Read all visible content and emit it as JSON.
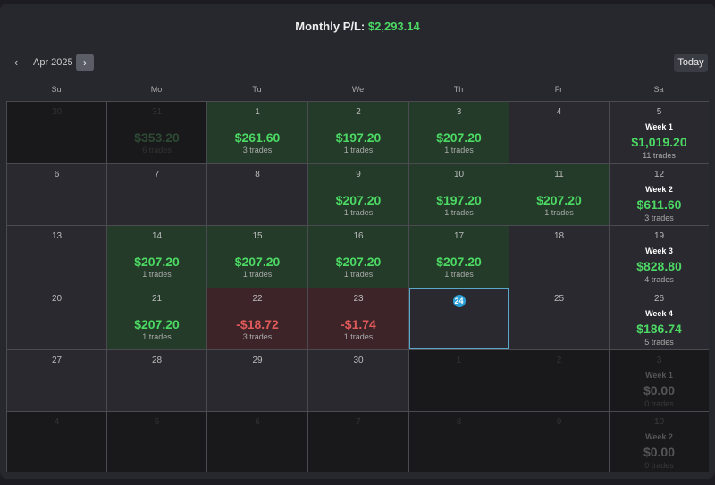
{
  "header": {
    "title_label": "Monthly P/L:",
    "title_value": "$2,293.14"
  },
  "nav": {
    "prev_icon": "‹",
    "next_icon": "›",
    "month_label": "Apr 2025",
    "today_label": "Today"
  },
  "weekdays": [
    "Su",
    "Mo",
    "Tu",
    "We",
    "Th",
    "Fr",
    "Sa"
  ],
  "colors": {
    "positive": "#4cd964",
    "negative": "#e05a5a",
    "positive_bg": "#233b28",
    "negative_bg": "#3d2429",
    "today_accent": "#2a9fd8"
  },
  "weeks": [
    {
      "days": [
        {
          "day": "30",
          "type": "other",
          "amount": "",
          "trades": ""
        },
        {
          "day": "31",
          "type": "other",
          "amount": "$353.20",
          "trades": "6 trades"
        },
        {
          "day": "1",
          "type": "pos",
          "amount": "$261.60",
          "trades": "3 trades"
        },
        {
          "day": "2",
          "type": "pos",
          "amount": "$197.20",
          "trades": "1 trades"
        },
        {
          "day": "3",
          "type": "pos",
          "amount": "$207.20",
          "trades": "1 trades"
        },
        {
          "day": "4",
          "type": "empty",
          "amount": "",
          "trades": ""
        }
      ],
      "summary": {
        "day": "5",
        "type": "current",
        "week": "Week 1",
        "amount": "$1,019.20",
        "trades": "11 trades"
      }
    },
    {
      "days": [
        {
          "day": "6",
          "type": "empty",
          "amount": "",
          "trades": ""
        },
        {
          "day": "7",
          "type": "empty",
          "amount": "",
          "trades": ""
        },
        {
          "day": "8",
          "type": "empty",
          "amount": "",
          "trades": ""
        },
        {
          "day": "9",
          "type": "pos",
          "amount": "$207.20",
          "trades": "1 trades"
        },
        {
          "day": "10",
          "type": "pos",
          "amount": "$197.20",
          "trades": "1 trades"
        },
        {
          "day": "11",
          "type": "pos",
          "amount": "$207.20",
          "trades": "1 trades"
        }
      ],
      "summary": {
        "day": "12",
        "type": "current",
        "week": "Week 2",
        "amount": "$611.60",
        "trades": "3 trades"
      }
    },
    {
      "days": [
        {
          "day": "13",
          "type": "empty",
          "amount": "",
          "trades": ""
        },
        {
          "day": "14",
          "type": "pos",
          "amount": "$207.20",
          "trades": "1 trades"
        },
        {
          "day": "15",
          "type": "pos",
          "amount": "$207.20",
          "trades": "1 trades"
        },
        {
          "day": "16",
          "type": "pos",
          "amount": "$207.20",
          "trades": "1 trades"
        },
        {
          "day": "17",
          "type": "pos",
          "amount": "$207.20",
          "trades": "1 trades"
        },
        {
          "day": "18",
          "type": "empty",
          "amount": "",
          "trades": ""
        }
      ],
      "summary": {
        "day": "19",
        "type": "current",
        "week": "Week 3",
        "amount": "$828.80",
        "trades": "4 trades"
      }
    },
    {
      "days": [
        {
          "day": "20",
          "type": "empty",
          "amount": "",
          "trades": ""
        },
        {
          "day": "21",
          "type": "pos",
          "amount": "$207.20",
          "trades": "1 trades"
        },
        {
          "day": "22",
          "type": "neg",
          "amount": "-$18.72",
          "trades": "3 trades"
        },
        {
          "day": "23",
          "type": "neg",
          "amount": "-$1.74",
          "trades": "1 trades"
        },
        {
          "day": "24",
          "type": "today",
          "amount": "",
          "trades": ""
        },
        {
          "day": "25",
          "type": "empty",
          "amount": "",
          "trades": ""
        }
      ],
      "summary": {
        "day": "26",
        "type": "current",
        "week": "Week 4",
        "amount": "$186.74",
        "trades": "5 trades"
      }
    },
    {
      "days": [
        {
          "day": "27",
          "type": "empty",
          "amount": "",
          "trades": ""
        },
        {
          "day": "28",
          "type": "empty",
          "amount": "",
          "trades": ""
        },
        {
          "day": "29",
          "type": "empty",
          "amount": "",
          "trades": ""
        },
        {
          "day": "30",
          "type": "empty",
          "amount": "",
          "trades": ""
        },
        {
          "day": "1",
          "type": "other",
          "amount": "",
          "trades": ""
        },
        {
          "day": "2",
          "type": "other",
          "amount": "",
          "trades": ""
        }
      ],
      "summary": {
        "day": "3",
        "type": "other",
        "week": "Week 1",
        "amount": "$0.00",
        "trades": "0 trades"
      }
    },
    {
      "days": [
        {
          "day": "4",
          "type": "other",
          "amount": "",
          "trades": ""
        },
        {
          "day": "5",
          "type": "other",
          "amount": "",
          "trades": ""
        },
        {
          "day": "6",
          "type": "other",
          "amount": "",
          "trades": ""
        },
        {
          "day": "7",
          "type": "other",
          "amount": "",
          "trades": ""
        },
        {
          "day": "8",
          "type": "other",
          "amount": "",
          "trades": ""
        },
        {
          "day": "9",
          "type": "other",
          "amount": "",
          "trades": ""
        }
      ],
      "summary": {
        "day": "10",
        "type": "other",
        "week": "Week 2",
        "amount": "$0.00",
        "trades": "0 trades"
      }
    }
  ]
}
